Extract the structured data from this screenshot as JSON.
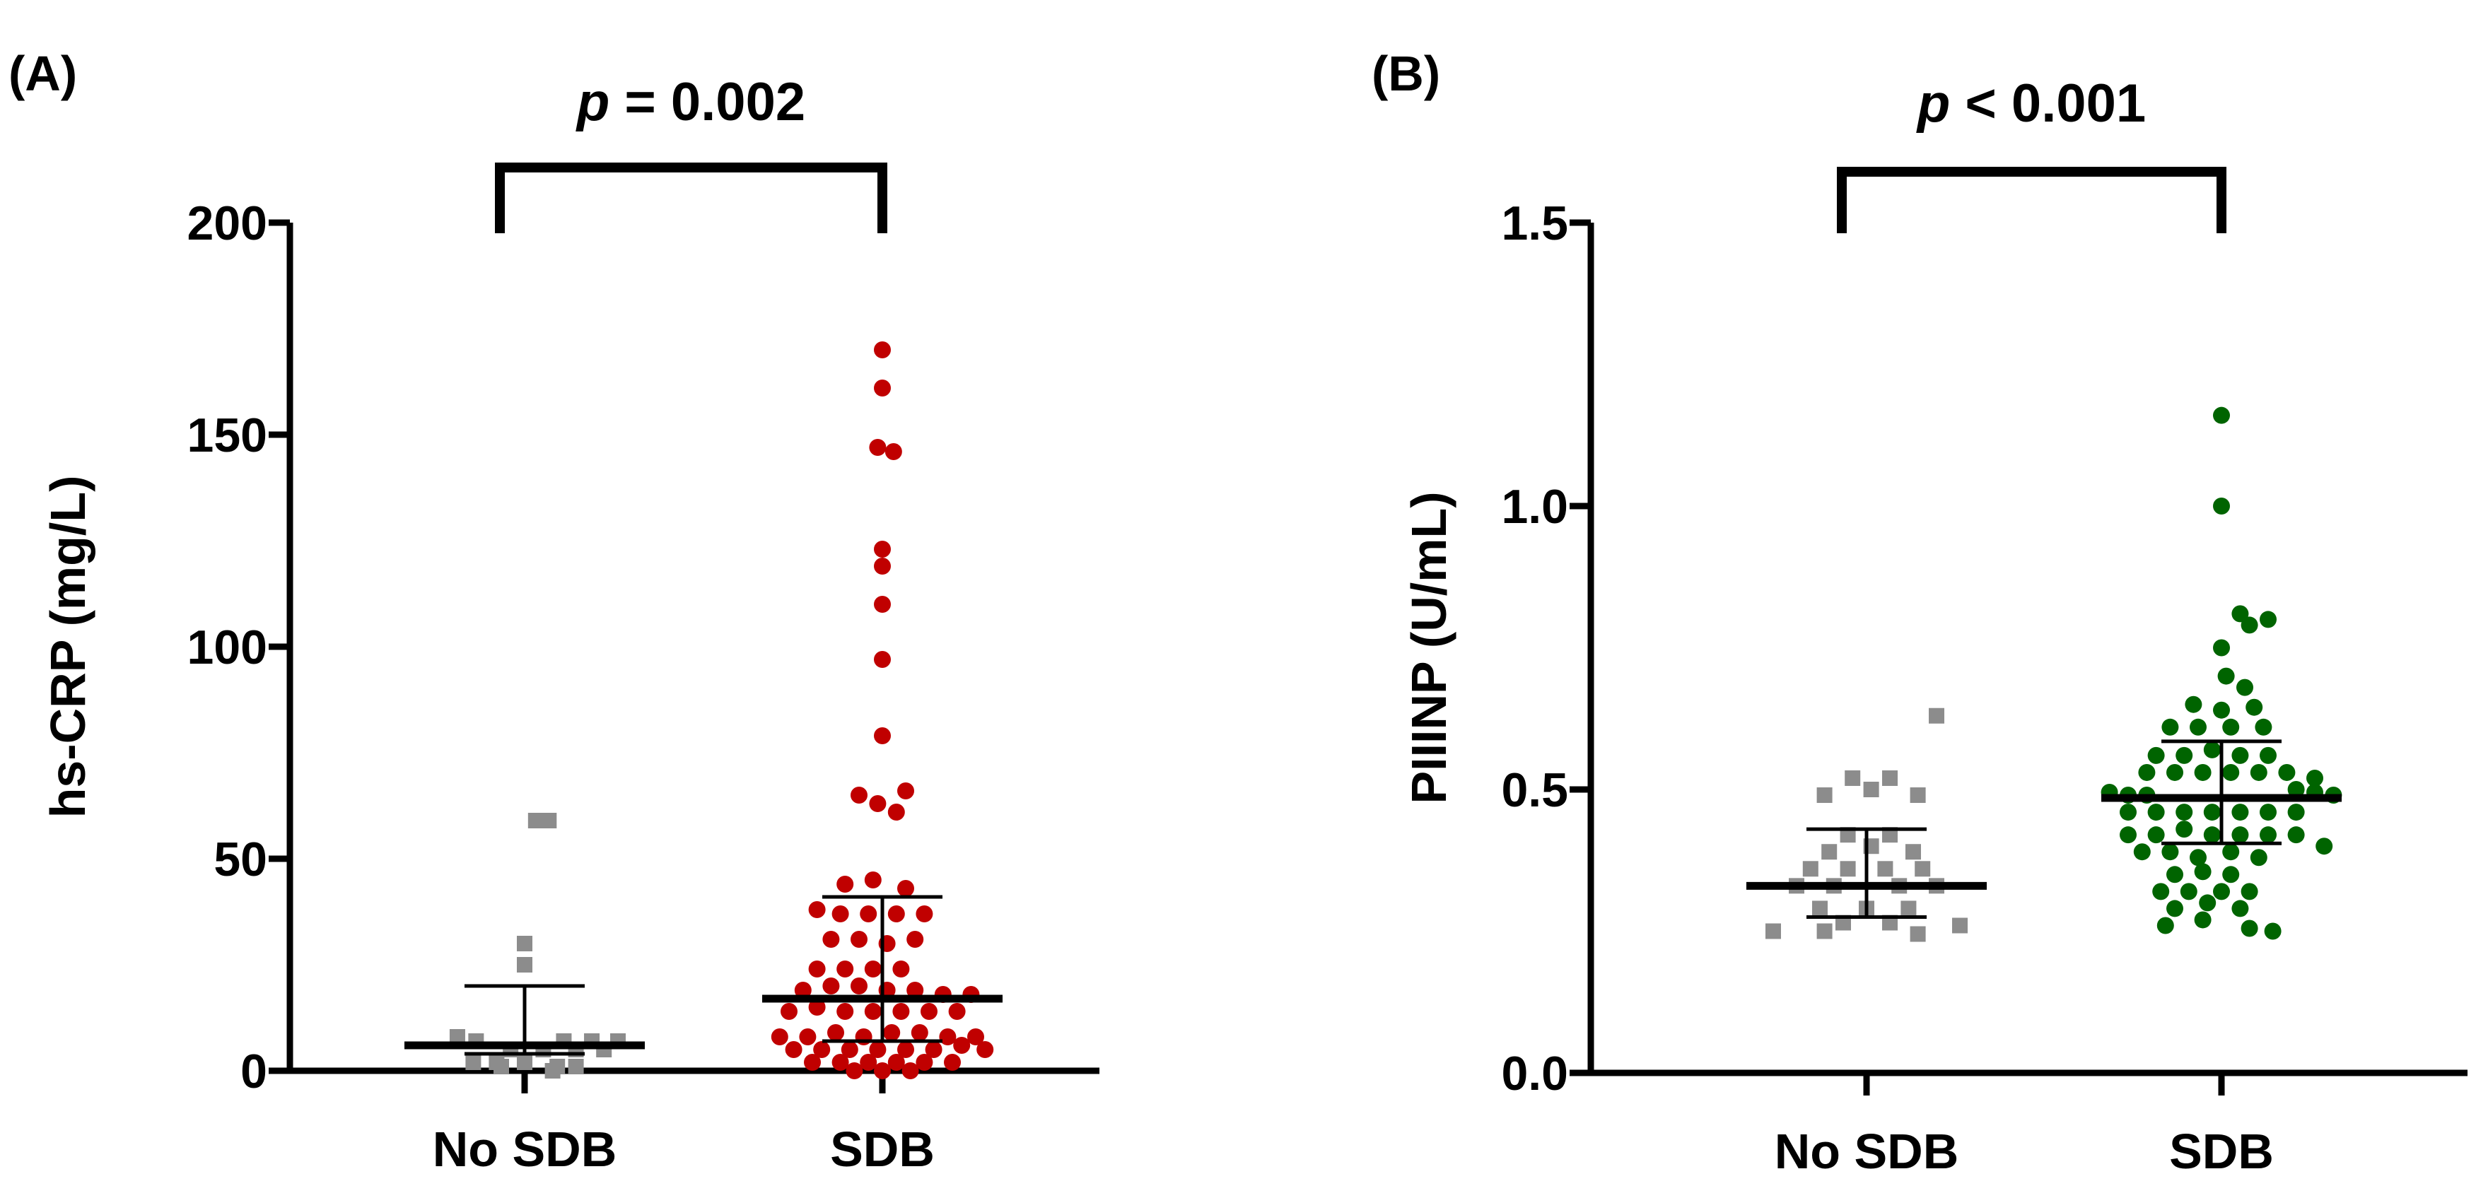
{
  "chart_data": [
    {
      "type": "scatter",
      "panel_label": "(A)",
      "ylabel": "hs-CRP (mg/L)",
      "xlabel": "",
      "ylim": [
        0,
        200
      ],
      "yticks": [
        "0",
        "50",
        "100",
        "150",
        "200"
      ],
      "ytick_values": [
        0,
        50,
        100,
        150,
        200
      ],
      "categories": [
        "No SDB",
        "SDB"
      ],
      "significance": {
        "prefix": "p",
        "text": " = 0.002"
      },
      "series": [
        {
          "name": "No SDB",
          "marker": "square",
          "color": "#8c8c8c",
          "median": 6,
          "error_low": 4,
          "error_high": 20,
          "points": [
            {
              "dx": 0.12,
              "y": 59
            },
            {
              "dx": 0.26,
              "y": 59
            },
            {
              "dx": 0.0,
              "y": 30
            },
            {
              "dx": 0.0,
              "y": 25
            },
            {
              "dx": -0.72,
              "y": 8
            },
            {
              "dx": -0.52,
              "y": 7
            },
            {
              "dx": 0.42,
              "y": 7
            },
            {
              "dx": 0.72,
              "y": 7
            },
            {
              "dx": 1.0,
              "y": 7
            },
            {
              "dx": -0.15,
              "y": 5
            },
            {
              "dx": 0.2,
              "y": 5
            },
            {
              "dx": 0.55,
              "y": 5
            },
            {
              "dx": 0.85,
              "y": 5
            },
            {
              "dx": -0.55,
              "y": 2
            },
            {
              "dx": -0.3,
              "y": 2
            },
            {
              "dx": 0.0,
              "y": 2
            },
            {
              "dx": 0.35,
              "y": 1
            },
            {
              "dx": -0.25,
              "y": 1
            },
            {
              "dx": 0.3,
              "y": 0
            },
            {
              "dx": 0.55,
              "y": 1
            }
          ]
        },
        {
          "name": "SDB",
          "marker": "circle",
          "color": "#c00000",
          "median": 17,
          "error_low": 7,
          "error_high": 41,
          "points": [
            {
              "dx": 0.0,
              "y": 170
            },
            {
              "dx": 0.0,
              "y": 161
            },
            {
              "dx": -0.05,
              "y": 147
            },
            {
              "dx": 0.12,
              "y": 146
            },
            {
              "dx": 0.0,
              "y": 123
            },
            {
              "dx": 0.0,
              "y": 119
            },
            {
              "dx": 0.0,
              "y": 110
            },
            {
              "dx": 0.0,
              "y": 97
            },
            {
              "dx": 0.0,
              "y": 79
            },
            {
              "dx": -0.25,
              "y": 65
            },
            {
              "dx": 0.25,
              "y": 66
            },
            {
              "dx": -0.05,
              "y": 63
            },
            {
              "dx": 0.15,
              "y": 61
            },
            {
              "dx": -0.4,
              "y": 44
            },
            {
              "dx": -0.1,
              "y": 45
            },
            {
              "dx": 0.25,
              "y": 43
            },
            {
              "dx": -0.7,
              "y": 38
            },
            {
              "dx": -0.45,
              "y": 37
            },
            {
              "dx": -0.15,
              "y": 37
            },
            {
              "dx": 0.15,
              "y": 37
            },
            {
              "dx": 0.45,
              "y": 37
            },
            {
              "dx": -0.55,
              "y": 31
            },
            {
              "dx": -0.25,
              "y": 31
            },
            {
              "dx": 0.05,
              "y": 30
            },
            {
              "dx": 0.35,
              "y": 31
            },
            {
              "dx": -0.7,
              "y": 24
            },
            {
              "dx": -0.4,
              "y": 24
            },
            {
              "dx": -0.1,
              "y": 24
            },
            {
              "dx": 0.2,
              "y": 24
            },
            {
              "dx": -0.85,
              "y": 19
            },
            {
              "dx": -0.55,
              "y": 20
            },
            {
              "dx": -0.25,
              "y": 20
            },
            {
              "dx": 0.05,
              "y": 19
            },
            {
              "dx": 0.35,
              "y": 19
            },
            {
              "dx": 0.65,
              "y": 18
            },
            {
              "dx": 0.95,
              "y": 18
            },
            {
              "dx": -1.0,
              "y": 14
            },
            {
              "dx": -0.7,
              "y": 15
            },
            {
              "dx": -0.4,
              "y": 14
            },
            {
              "dx": -0.1,
              "y": 14
            },
            {
              "dx": 0.2,
              "y": 14
            },
            {
              "dx": 0.5,
              "y": 14
            },
            {
              "dx": 0.8,
              "y": 14
            },
            {
              "dx": -1.1,
              "y": 8
            },
            {
              "dx": -0.8,
              "y": 8
            },
            {
              "dx": -0.5,
              "y": 9
            },
            {
              "dx": -0.2,
              "y": 8
            },
            {
              "dx": 0.1,
              "y": 9
            },
            {
              "dx": 0.4,
              "y": 9
            },
            {
              "dx": 0.7,
              "y": 8
            },
            {
              "dx": 1.0,
              "y": 8
            },
            {
              "dx": -0.95,
              "y": 5
            },
            {
              "dx": -0.65,
              "y": 5
            },
            {
              "dx": -0.35,
              "y": 5
            },
            {
              "dx": -0.05,
              "y": 5
            },
            {
              "dx": 0.25,
              "y": 5
            },
            {
              "dx": 0.55,
              "y": 5
            },
            {
              "dx": 0.85,
              "y": 6
            },
            {
              "dx": 1.1,
              "y": 5
            },
            {
              "dx": -0.75,
              "y": 2
            },
            {
              "dx": -0.45,
              "y": 2
            },
            {
              "dx": -0.15,
              "y": 2
            },
            {
              "dx": 0.15,
              "y": 2
            },
            {
              "dx": 0.45,
              "y": 2
            },
            {
              "dx": 0.75,
              "y": 2
            },
            {
              "dx": -0.3,
              "y": 0
            },
            {
              "dx": 0.0,
              "y": 0
            },
            {
              "dx": 0.3,
              "y": 0
            }
          ]
        }
      ]
    },
    {
      "type": "scatter",
      "panel_label": "(B)",
      "ylabel": "PIIINP (U/mL)",
      "xlabel": "",
      "ylim": [
        0,
        1.5
      ],
      "yticks": [
        "0.0",
        "0.5",
        "1.0",
        "1.5"
      ],
      "ytick_values": [
        0,
        0.5,
        1.0,
        1.5
      ],
      "categories": [
        "No SDB",
        "SDB"
      ],
      "significance": {
        "prefix": "p",
        "text": " < 0.001"
      },
      "series": [
        {
          "name": "No SDB",
          "marker": "square",
          "color": "#8c8c8c",
          "median": 0.33,
          "error_low": 0.275,
          "error_high": 0.43,
          "points": [
            {
              "dx": 0.75,
              "y": 0.63
            },
            {
              "dx": -0.15,
              "y": 0.52
            },
            {
              "dx": 0.25,
              "y": 0.52
            },
            {
              "dx": -0.45,
              "y": 0.49
            },
            {
              "dx": 0.05,
              "y": 0.5
            },
            {
              "dx": 0.55,
              "y": 0.49
            },
            {
              "dx": -0.2,
              "y": 0.42
            },
            {
              "dx": 0.25,
              "y": 0.42
            },
            {
              "dx": -0.4,
              "y": 0.39
            },
            {
              "dx": 0.05,
              "y": 0.4
            },
            {
              "dx": 0.5,
              "y": 0.39
            },
            {
              "dx": -0.6,
              "y": 0.36
            },
            {
              "dx": -0.2,
              "y": 0.36
            },
            {
              "dx": 0.2,
              "y": 0.36
            },
            {
              "dx": 0.6,
              "y": 0.36
            },
            {
              "dx": -0.75,
              "y": 0.33
            },
            {
              "dx": -0.35,
              "y": 0.33
            },
            {
              "dx": 0.35,
              "y": 0.33
            },
            {
              "dx": 0.75,
              "y": 0.33
            },
            {
              "dx": -0.5,
              "y": 0.29
            },
            {
              "dx": 0.0,
              "y": 0.29
            },
            {
              "dx": 0.45,
              "y": 0.29
            },
            {
              "dx": -0.25,
              "y": 0.265
            },
            {
              "dx": 0.25,
              "y": 0.265
            },
            {
              "dx": -1.0,
              "y": 0.25
            },
            {
              "dx": -0.45,
              "y": 0.25
            },
            {
              "dx": 0.55,
              "y": 0.245
            },
            {
              "dx": 1.0,
              "y": 0.26
            }
          ]
        },
        {
          "name": "SDB",
          "marker": "circle",
          "color": "#006400",
          "median": 0.485,
          "error_low": 0.405,
          "error_high": 0.585,
          "points": [
            {
              "dx": 0.0,
              "y": 1.16
            },
            {
              "dx": 0.0,
              "y": 1.0
            },
            {
              "dx": 0.2,
              "y": 0.81
            },
            {
              "dx": 0.5,
              "y": 0.8
            },
            {
              "dx": 0.3,
              "y": 0.79
            },
            {
              "dx": 0.0,
              "y": 0.75
            },
            {
              "dx": 0.05,
              "y": 0.7
            },
            {
              "dx": 0.25,
              "y": 0.68
            },
            {
              "dx": -0.3,
              "y": 0.65
            },
            {
              "dx": 0.0,
              "y": 0.64
            },
            {
              "dx": 0.35,
              "y": 0.645
            },
            {
              "dx": -0.55,
              "y": 0.61
            },
            {
              "dx": -0.25,
              "y": 0.61
            },
            {
              "dx": 0.1,
              "y": 0.61
            },
            {
              "dx": 0.45,
              "y": 0.61
            },
            {
              "dx": -0.7,
              "y": 0.56
            },
            {
              "dx": -0.4,
              "y": 0.56
            },
            {
              "dx": -0.1,
              "y": 0.57
            },
            {
              "dx": 0.2,
              "y": 0.56
            },
            {
              "dx": 0.5,
              "y": 0.56
            },
            {
              "dx": -0.8,
              "y": 0.53
            },
            {
              "dx": -0.5,
              "y": 0.53
            },
            {
              "dx": -0.2,
              "y": 0.53
            },
            {
              "dx": 0.1,
              "y": 0.53
            },
            {
              "dx": 0.4,
              "y": 0.53
            },
            {
              "dx": 0.7,
              "y": 0.53
            },
            {
              "dx": 1.0,
              "y": 0.52
            },
            {
              "dx": -1.2,
              "y": 0.495
            },
            {
              "dx": -1.0,
              "y": 0.49
            },
            {
              "dx": -0.8,
              "y": 0.49
            },
            {
              "dx": 0.8,
              "y": 0.5
            },
            {
              "dx": 1.0,
              "y": 0.495
            },
            {
              "dx": 1.2,
              "y": 0.49
            },
            {
              "dx": -1.0,
              "y": 0.46
            },
            {
              "dx": -0.7,
              "y": 0.46
            },
            {
              "dx": -0.4,
              "y": 0.46
            },
            {
              "dx": -0.1,
              "y": 0.46
            },
            {
              "dx": 0.2,
              "y": 0.46
            },
            {
              "dx": 0.5,
              "y": 0.46
            },
            {
              "dx": 0.8,
              "y": 0.46
            },
            {
              "dx": -1.0,
              "y": 0.42
            },
            {
              "dx": -0.7,
              "y": 0.42
            },
            {
              "dx": -0.4,
              "y": 0.43
            },
            {
              "dx": -0.1,
              "y": 0.42
            },
            {
              "dx": 0.2,
              "y": 0.42
            },
            {
              "dx": 0.5,
              "y": 0.42
            },
            {
              "dx": 0.8,
              "y": 0.42
            },
            {
              "dx": 1.1,
              "y": 0.4
            },
            {
              "dx": -0.85,
              "y": 0.39
            },
            {
              "dx": -0.55,
              "y": 0.39
            },
            {
              "dx": -0.25,
              "y": 0.38
            },
            {
              "dx": 0.1,
              "y": 0.39
            },
            {
              "dx": 0.4,
              "y": 0.38
            },
            {
              "dx": -0.5,
              "y": 0.35
            },
            {
              "dx": -0.2,
              "y": 0.355
            },
            {
              "dx": 0.1,
              "y": 0.35
            },
            {
              "dx": -0.65,
              "y": 0.32
            },
            {
              "dx": -0.35,
              "y": 0.32
            },
            {
              "dx": 0.0,
              "y": 0.32
            },
            {
              "dx": 0.3,
              "y": 0.32
            },
            {
              "dx": -0.5,
              "y": 0.29
            },
            {
              "dx": -0.15,
              "y": 0.3
            },
            {
              "dx": 0.2,
              "y": 0.29
            },
            {
              "dx": -0.6,
              "y": 0.26
            },
            {
              "dx": -0.2,
              "y": 0.27
            },
            {
              "dx": 0.3,
              "y": 0.255
            },
            {
              "dx": 0.55,
              "y": 0.25
            }
          ]
        }
      ]
    }
  ]
}
